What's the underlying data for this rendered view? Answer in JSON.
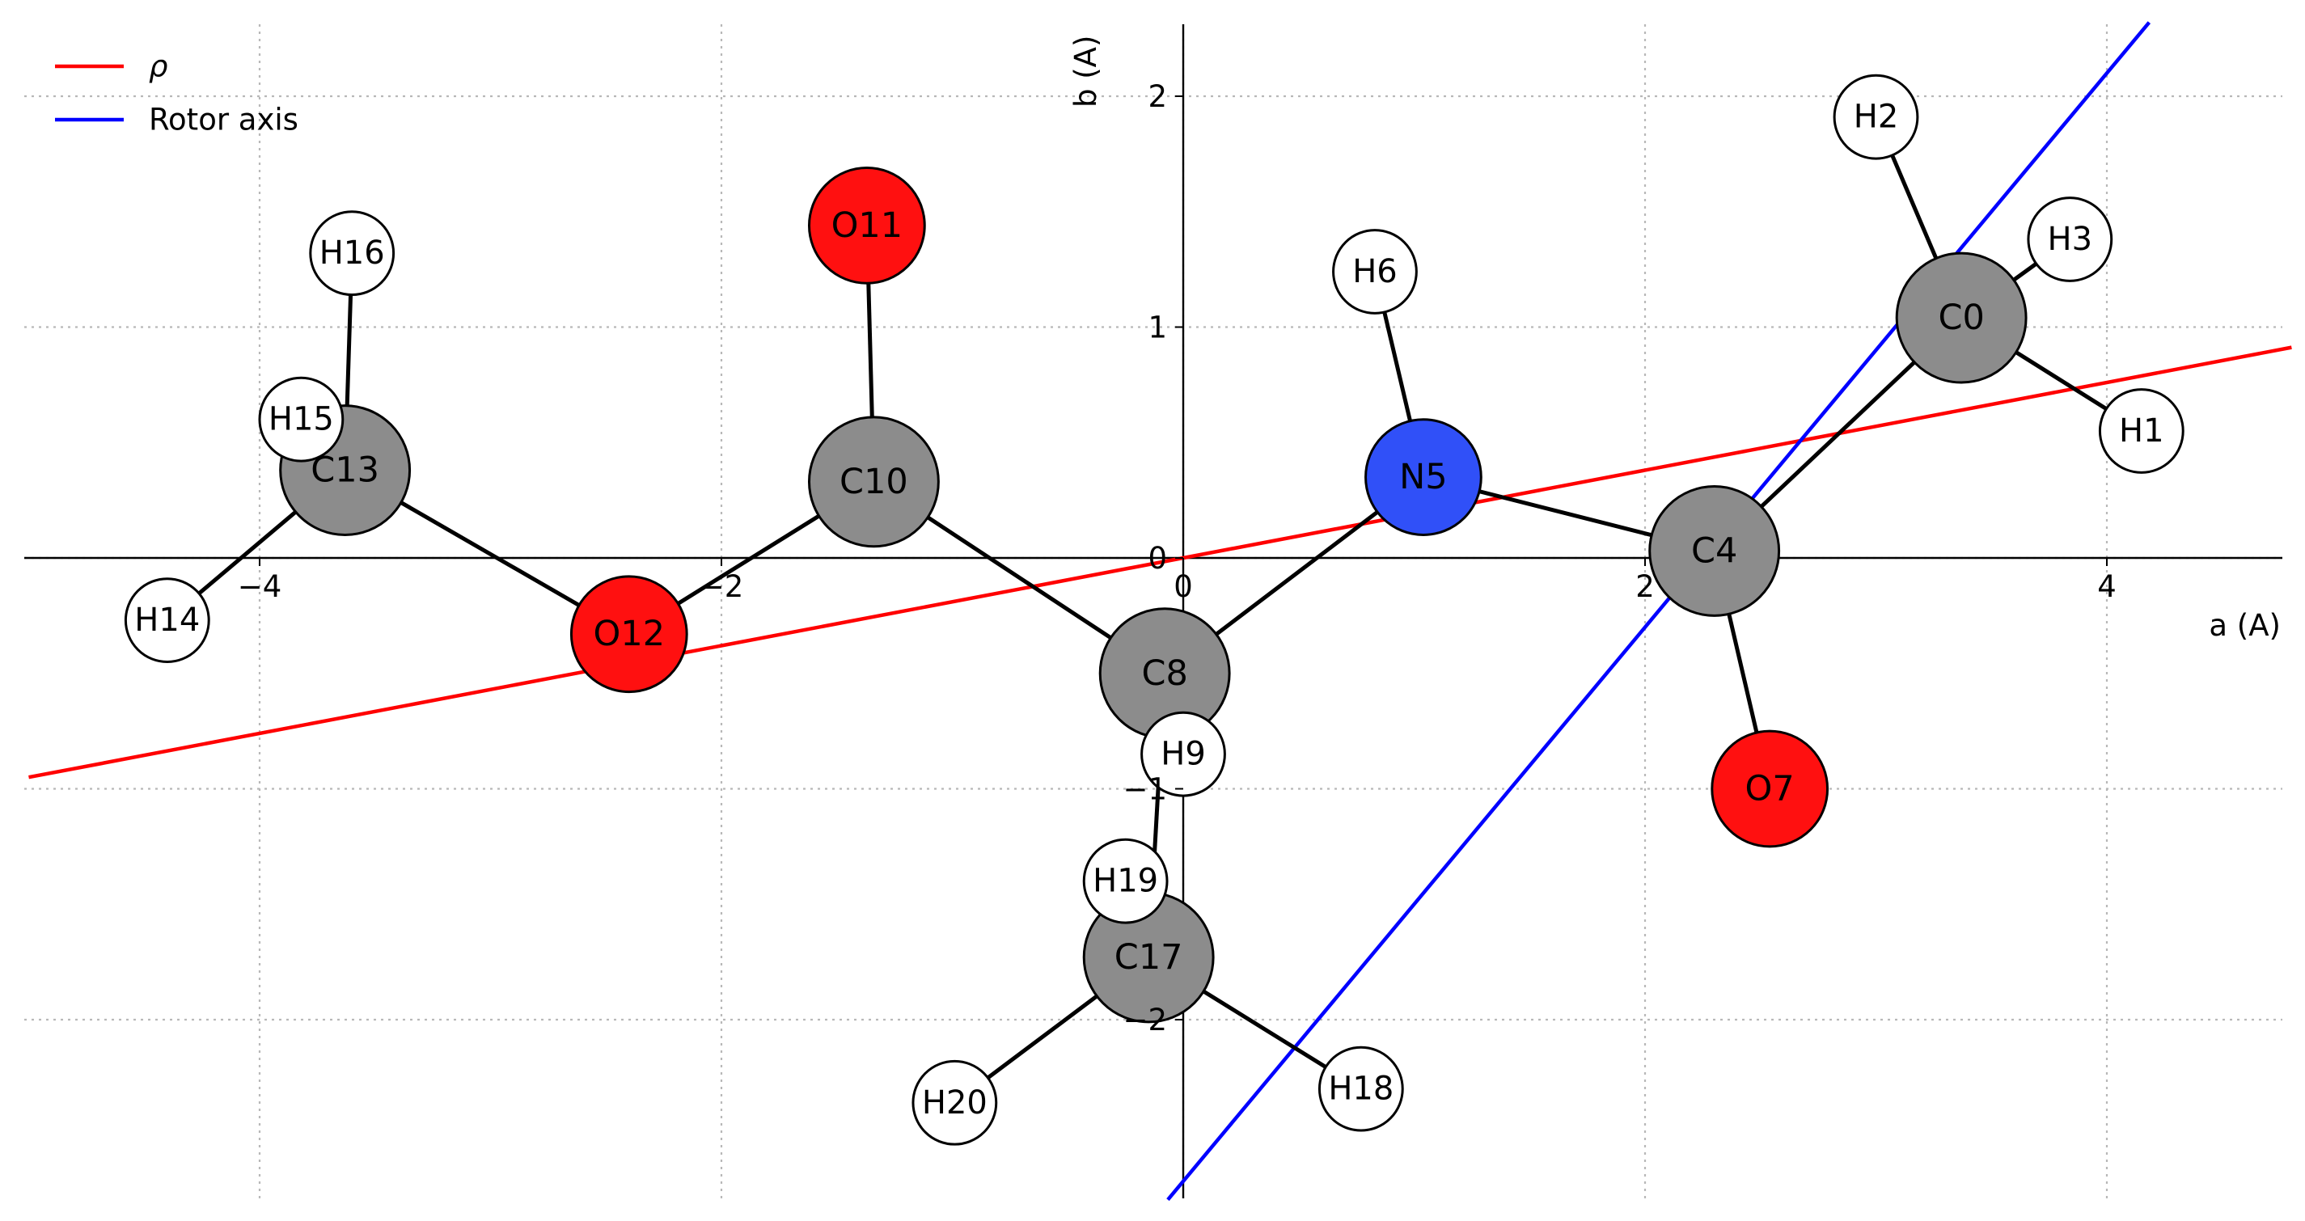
{
  "chart_data": {
    "type": "scatter",
    "xlabel": "a (A)",
    "ylabel": "b (A)",
    "xlim": [
      -5.0,
      4.8
    ],
    "ylim": [
      -2.78,
      2.32
    ],
    "grid": true,
    "legend_position": "top-left",
    "x_ticks": [
      {
        "value": -4,
        "label": "−4"
      },
      {
        "value": -2,
        "label": "−2"
      },
      {
        "value": 0,
        "label": "0"
      },
      {
        "value": 2,
        "label": "2"
      },
      {
        "value": 4,
        "label": "4"
      }
    ],
    "y_ticks": [
      {
        "value": 2,
        "label": "2"
      },
      {
        "value": 1,
        "label": "1"
      },
      {
        "value": 0,
        "label": "0"
      },
      {
        "value": -1,
        "label": "−1"
      },
      {
        "value": -2,
        "label": "−2"
      }
    ],
    "lines": [
      {
        "name": "ρ",
        "color": "#ff0000",
        "slope": 0.19
      },
      {
        "name": "Rotor axis",
        "color": "#0000ff",
        "slope": 1.2,
        "intercept": -2.7
      }
    ],
    "atoms": [
      {
        "id": "H14",
        "x": -4.4,
        "y": -0.27,
        "color": "#ffffff",
        "r": 0.18
      },
      {
        "id": "H15",
        "x": -3.82,
        "y": 0.6,
        "color": "#ffffff",
        "r": 0.18
      },
      {
        "id": "C13",
        "x": -3.63,
        "y": 0.38,
        "color": "#8c8c8c",
        "r": 0.28
      },
      {
        "id": "H16",
        "x": -3.6,
        "y": 1.32,
        "color": "#ffffff",
        "r": 0.18
      },
      {
        "id": "O12",
        "x": -2.4,
        "y": -0.33,
        "color": "#ff1010",
        "r": 0.25
      },
      {
        "id": "O11",
        "x": -1.37,
        "y": 1.44,
        "color": "#ff1010",
        "r": 0.25
      },
      {
        "id": "C10",
        "x": -1.34,
        "y": 0.33,
        "color": "#8c8c8c",
        "r": 0.28
      },
      {
        "id": "H19",
        "x": -0.25,
        "y": -1.4,
        "color": "#ffffff",
        "r": 0.18
      },
      {
        "id": "C17",
        "x": -0.15,
        "y": -1.73,
        "color": "#8c8c8c",
        "r": 0.28
      },
      {
        "id": "H20",
        "x": -0.99,
        "y": -2.36,
        "color": "#ffffff",
        "r": 0.18
      },
      {
        "id": "H18",
        "x": 0.77,
        "y": -2.3,
        "color": "#ffffff",
        "r": 0.18
      },
      {
        "id": "H9",
        "x": 0.0,
        "y": -0.85,
        "color": "#ffffff",
        "r": 0.18
      },
      {
        "id": "C8",
        "x": -0.08,
        "y": -0.5,
        "color": "#8c8c8c",
        "r": 0.28
      },
      {
        "id": "H6",
        "x": 0.83,
        "y": 1.24,
        "color": "#ffffff",
        "r": 0.18
      },
      {
        "id": "N5",
        "x": 1.04,
        "y": 0.35,
        "color": "#3050f8",
        "r": 0.25
      },
      {
        "id": "C4",
        "x": 2.3,
        "y": 0.03,
        "color": "#8c8c8c",
        "r": 0.28
      },
      {
        "id": "O7",
        "x": 2.54,
        "y": -1.0,
        "color": "#ff1010",
        "r": 0.25
      },
      {
        "id": "C0",
        "x": 3.37,
        "y": 1.04,
        "color": "#8c8c8c",
        "r": 0.28
      },
      {
        "id": "H2",
        "x": 3.0,
        "y": 1.91,
        "color": "#ffffff",
        "r": 0.18
      },
      {
        "id": "H3",
        "x": 3.84,
        "y": 1.38,
        "color": "#ffffff",
        "r": 0.18
      },
      {
        "id": "H1",
        "x": 4.15,
        "y": 0.55,
        "color": "#ffffff",
        "r": 0.18
      }
    ],
    "bonds": [
      [
        "H14",
        "C13"
      ],
      [
        "H15",
        "C13"
      ],
      [
        "C13",
        "H16"
      ],
      [
        "C13",
        "O12"
      ],
      [
        "O12",
        "C10"
      ],
      [
        "C10",
        "O11"
      ],
      [
        "C10",
        "C8"
      ],
      [
        "C8",
        "H9"
      ],
      [
        "C8",
        "N5"
      ],
      [
        "C8",
        "C17"
      ],
      [
        "C17",
        "H19"
      ],
      [
        "C17",
        "H20"
      ],
      [
        "C17",
        "H18"
      ],
      [
        "N5",
        "H6"
      ],
      [
        "N5",
        "C4"
      ],
      [
        "C4",
        "O7"
      ],
      [
        "C4",
        "C0"
      ],
      [
        "C0",
        "H2"
      ],
      [
        "C0",
        "H3"
      ],
      [
        "C0",
        "H1"
      ]
    ]
  }
}
